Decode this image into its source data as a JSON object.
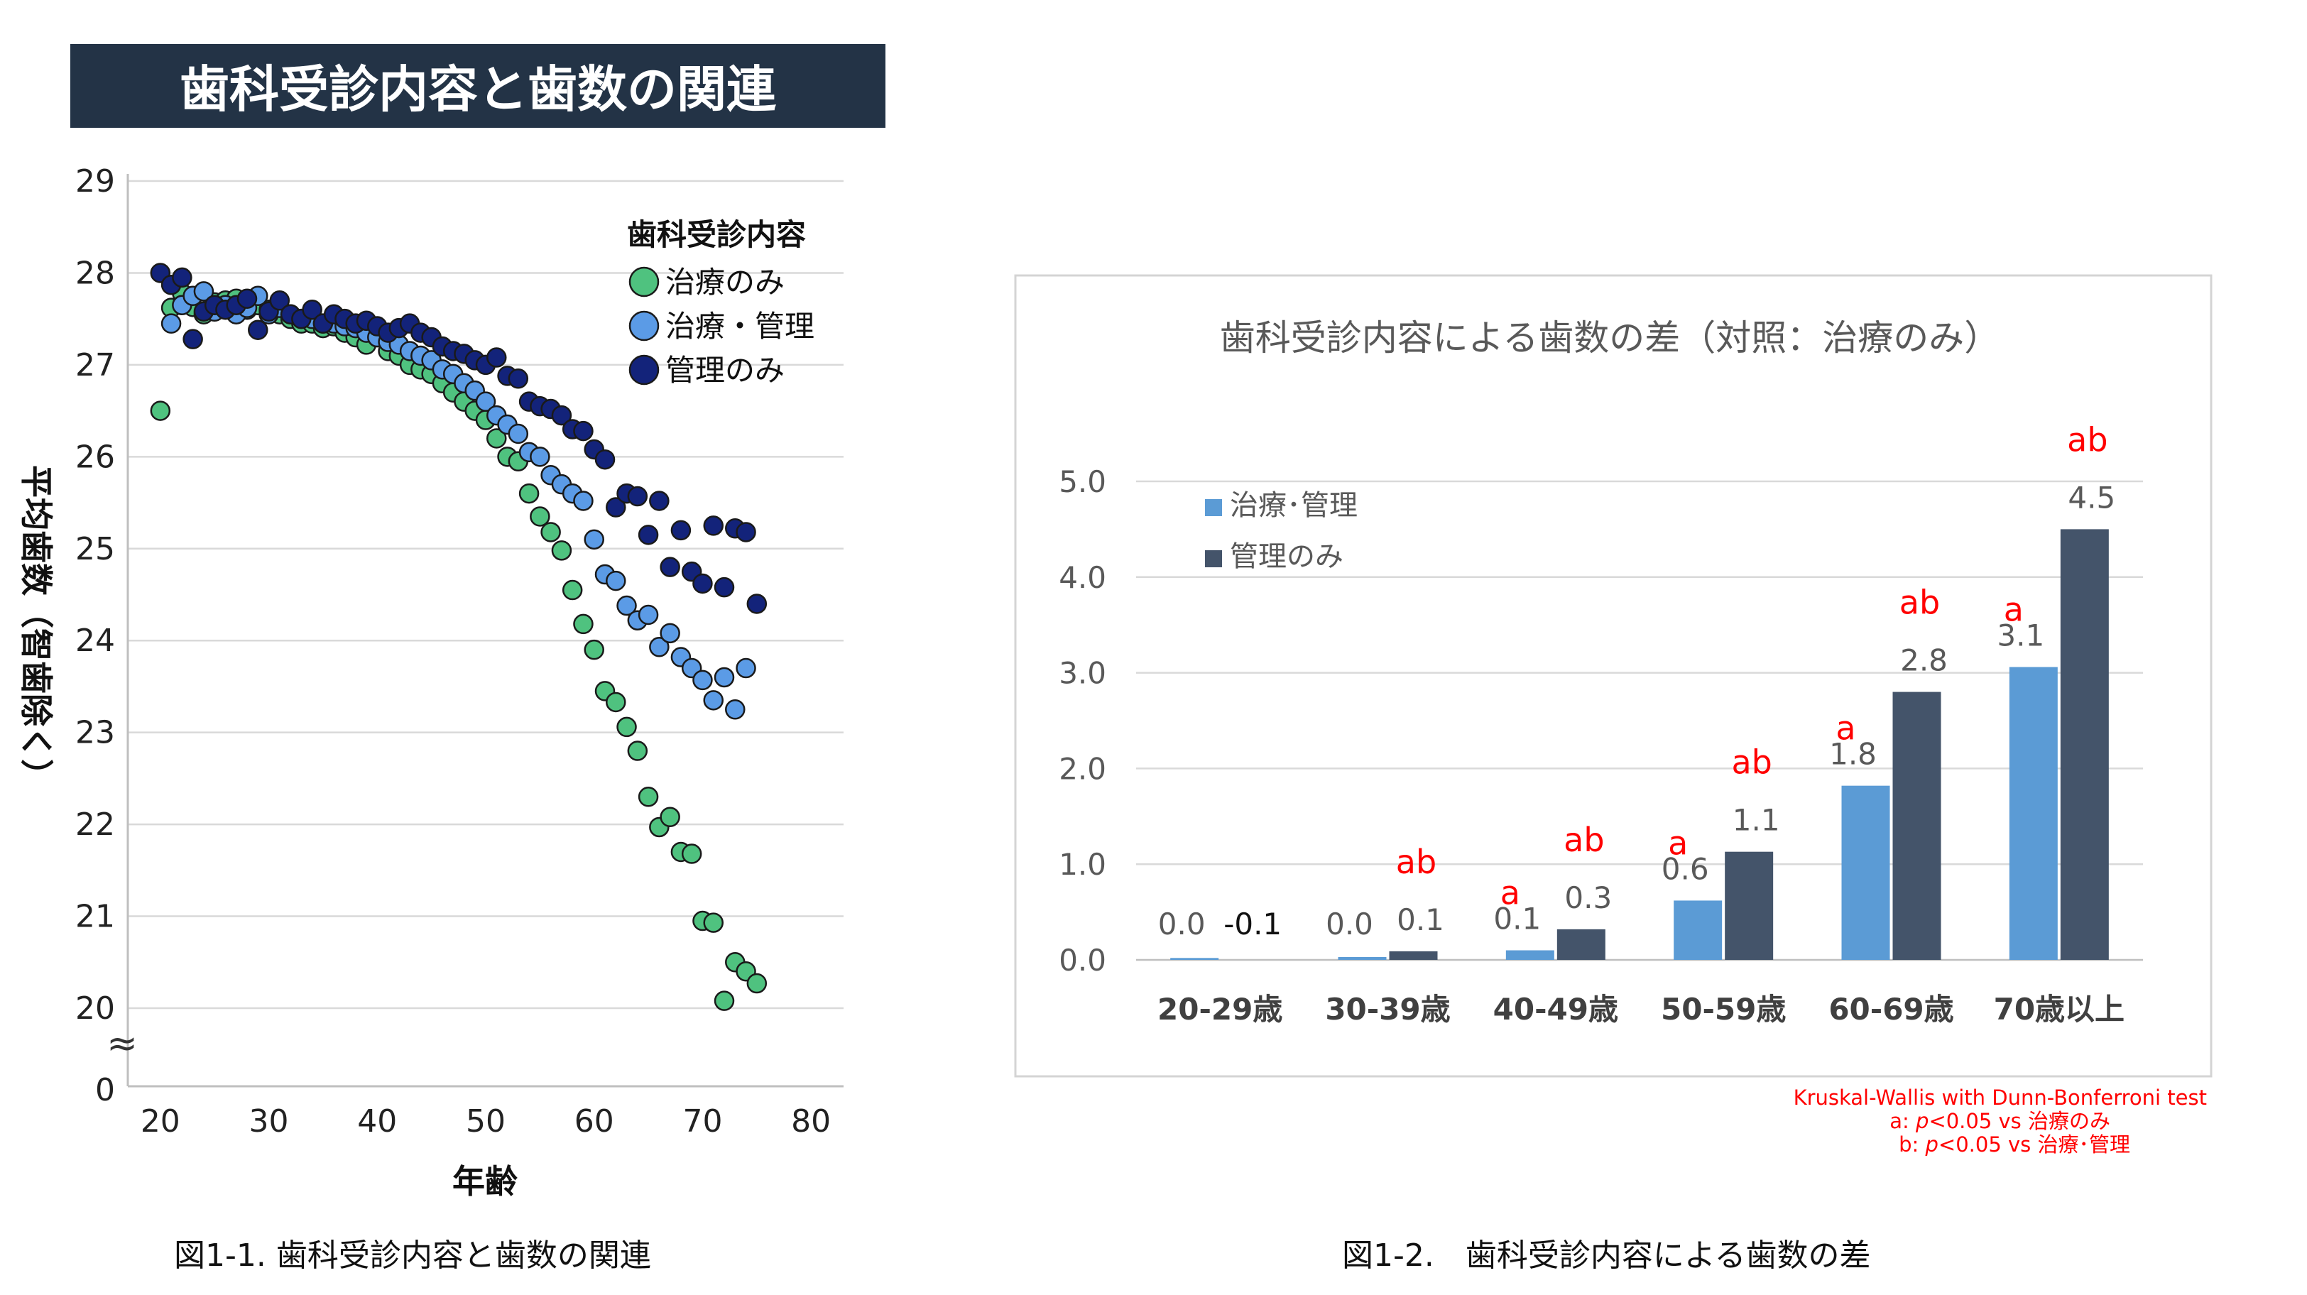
{
  "left": {
    "banner": "歯科受診内容と歯数の関連",
    "caption": "図1-1. 歯科受診内容と歯数の関連",
    "chart_data": {
      "type": "scatter",
      "title": "歯科受診内容と歯数の関連",
      "xlabel": "年齢",
      "ylabel": "平均歯数（智歯除く）",
      "xlim": [
        17,
        83
      ],
      "ylim": [
        20,
        29
      ],
      "x_ticks": [
        "20",
        "30",
        "40",
        "50",
        "60",
        "70",
        "80"
      ],
      "y_ticks": [
        "29",
        "28",
        "27",
        "26",
        "25",
        "24",
        "23",
        "22",
        "21",
        "20"
      ],
      "y_zero_label": "0",
      "axis_break": "≈",
      "grid": true,
      "legend_title": "歯科受診内容",
      "legend_position": "top-right",
      "series": [
        {
          "name": "治療のみ",
          "color": "#4fc27f",
          "points": [
            [
              20,
              26.5
            ],
            [
              21,
              27.62
            ],
            [
              22,
              27.78
            ],
            [
              23,
              27.63
            ],
            [
              24,
              27.55
            ],
            [
              25,
              27.68
            ],
            [
              26,
              27.7
            ],
            [
              27,
              27.72
            ],
            [
              28,
              27.6
            ],
            [
              29,
              27.65
            ],
            [
              30,
              27.6
            ],
            [
              31,
              27.55
            ],
            [
              32,
              27.5
            ],
            [
              33,
              27.45
            ],
            [
              34,
              27.45
            ],
            [
              35,
              27.4
            ],
            [
              36,
              27.42
            ],
            [
              37,
              27.35
            ],
            [
              38,
              27.3
            ],
            [
              39,
              27.22
            ],
            [
              40,
              27.3
            ],
            [
              41,
              27.15
            ],
            [
              42,
              27.1
            ],
            [
              43,
              27.0
            ],
            [
              44,
              26.95
            ],
            [
              45,
              26.9
            ],
            [
              46,
              26.8
            ],
            [
              47,
              26.7
            ],
            [
              48,
              26.6
            ],
            [
              49,
              26.5
            ],
            [
              50,
              26.4
            ],
            [
              51,
              26.2
            ],
            [
              52,
              26.0
            ],
            [
              53,
              25.95
            ],
            [
              54,
              25.6
            ],
            [
              55,
              25.35
            ],
            [
              56,
              25.18
            ],
            [
              57,
              24.98
            ],
            [
              58,
              24.55
            ],
            [
              59,
              24.18
            ],
            [
              60,
              23.9
            ],
            [
              61,
              23.45
            ],
            [
              62,
              23.33
            ],
            [
              63,
              23.06
            ],
            [
              64,
              22.8
            ],
            [
              65,
              22.3
            ],
            [
              66,
              21.97
            ],
            [
              67,
              22.08
            ],
            [
              68,
              21.7
            ],
            [
              69,
              21.68
            ],
            [
              70,
              20.95
            ],
            [
              71,
              20.93
            ],
            [
              72,
              20.08
            ],
            [
              73,
              20.5
            ],
            [
              74,
              20.4
            ],
            [
              75,
              20.27
            ]
          ]
        },
        {
          "name": "治療・管理",
          "color": "#5b9be6",
          "points": [
            [
              21,
              27.45
            ],
            [
              22,
              27.65
            ],
            [
              23,
              27.75
            ],
            [
              24,
              27.8
            ],
            [
              25,
              27.58
            ],
            [
              26,
              27.65
            ],
            [
              27,
              27.55
            ],
            [
              28,
              27.62
            ],
            [
              29,
              27.75
            ],
            [
              30,
              27.55
            ],
            [
              31,
              27.62
            ],
            [
              32,
              27.55
            ],
            [
              33,
              27.5
            ],
            [
              34,
              27.5
            ],
            [
              35,
              27.45
            ],
            [
              36,
              27.45
            ],
            [
              37,
              27.42
            ],
            [
              38,
              27.4
            ],
            [
              39,
              27.35
            ],
            [
              40,
              27.3
            ],
            [
              41,
              27.25
            ],
            [
              42,
              27.22
            ],
            [
              43,
              27.15
            ],
            [
              44,
              27.1
            ],
            [
              45,
              27.05
            ],
            [
              46,
              26.95
            ],
            [
              47,
              26.9
            ],
            [
              48,
              26.8
            ],
            [
              49,
              26.72
            ],
            [
              50,
              26.6
            ],
            [
              51,
              26.45
            ],
            [
              52,
              26.35
            ],
            [
              53,
              26.25
            ],
            [
              54,
              26.05
            ],
            [
              55,
              26.0
            ],
            [
              56,
              25.8
            ],
            [
              57,
              25.7
            ],
            [
              58,
              25.6
            ],
            [
              59,
              25.52
            ],
            [
              60,
              25.1
            ],
            [
              61,
              24.72
            ],
            [
              62,
              24.65
            ],
            [
              63,
              24.38
            ],
            [
              64,
              24.22
            ],
            [
              65,
              24.28
            ],
            [
              66,
              23.93
            ],
            [
              67,
              24.08
            ],
            [
              68,
              23.82
            ],
            [
              69,
              23.7
            ],
            [
              70,
              23.57
            ],
            [
              71,
              23.35
            ],
            [
              72,
              23.6
            ],
            [
              73,
              23.25
            ],
            [
              74,
              23.7
            ]
          ]
        },
        {
          "name": "管理のみ",
          "color": "#13237a",
          "points": [
            [
              20,
              28.0
            ],
            [
              21,
              27.87
            ],
            [
              22,
              27.95
            ],
            [
              23,
              27.28
            ],
            [
              24,
              27.58
            ],
            [
              25,
              27.65
            ],
            [
              26,
              27.6
            ],
            [
              27,
              27.65
            ],
            [
              28,
              27.72
            ],
            [
              29,
              27.38
            ],
            [
              30,
              27.58
            ],
            [
              31,
              27.7
            ],
            [
              32,
              27.55
            ],
            [
              33,
              27.5
            ],
            [
              34,
              27.6
            ],
            [
              35,
              27.45
            ],
            [
              36,
              27.55
            ],
            [
              37,
              27.5
            ],
            [
              38,
              27.45
            ],
            [
              39,
              27.48
            ],
            [
              40,
              27.42
            ],
            [
              41,
              27.35
            ],
            [
              42,
              27.4
            ],
            [
              43,
              27.45
            ],
            [
              44,
              27.35
            ],
            [
              45,
              27.3
            ],
            [
              46,
              27.2
            ],
            [
              47,
              27.15
            ],
            [
              48,
              27.12
            ],
            [
              49,
              27.05
            ],
            [
              50,
              27.0
            ],
            [
              51,
              27.08
            ],
            [
              52,
              26.88
            ],
            [
              53,
              26.85
            ],
            [
              54,
              26.6
            ],
            [
              55,
              26.55
            ],
            [
              56,
              26.52
            ],
            [
              57,
              26.45
            ],
            [
              58,
              26.3
            ],
            [
              59,
              26.28
            ],
            [
              60,
              26.08
            ],
            [
              61,
              25.97
            ],
            [
              62,
              25.45
            ],
            [
              63,
              25.6
            ],
            [
              64,
              25.57
            ],
            [
              65,
              25.15
            ],
            [
              66,
              25.52
            ],
            [
              67,
              24.8
            ],
            [
              68,
              25.2
            ],
            [
              69,
              24.75
            ],
            [
              70,
              24.62
            ],
            [
              71,
              25.25
            ],
            [
              72,
              24.58
            ],
            [
              73,
              25.22
            ],
            [
              74,
              25.18
            ],
            [
              75,
              24.4
            ]
          ]
        }
      ]
    }
  },
  "right": {
    "caption": "図1-2.　歯科受診内容による歯数の差",
    "chart_data": {
      "type": "bar",
      "title": "歯科受診内容による歯数の差（対照：治療のみ）",
      "categories": [
        "20-29歳",
        "30-39歳",
        "40-49歳",
        "50-59歳",
        "60-69歳",
        "70歳以上"
      ],
      "ylim": [
        0,
        5
      ],
      "y_ticks": [
        "0.0",
        "1.0",
        "2.0",
        "3.0",
        "4.0",
        "5.0"
      ],
      "grid": true,
      "legend_position": "top-left",
      "series": [
        {
          "name": "治療･管理",
          "color": "#5b9bd5",
          "values": [
            0.0,
            0.0,
            0.1,
            0.6,
            1.8,
            3.1
          ],
          "labels": [
            "0.0",
            "0.0",
            "0.1",
            "0.6",
            "1.8",
            "3.1"
          ],
          "bar_heights": [
            0.02,
            0.03,
            0.1,
            0.62,
            1.82,
            3.06
          ]
        },
        {
          "name": "管理のみ",
          "color": "#44546a",
          "values": [
            -0.1,
            0.1,
            0.3,
            1.1,
            2.8,
            4.5
          ],
          "labels": [
            "-0.1",
            "0.1",
            "0.3",
            "1.1",
            "2.8",
            "4.5"
          ],
          "bar_heights": [
            0.0,
            0.09,
            0.32,
            1.13,
            2.8,
            4.5
          ]
        }
      ],
      "annotations": [
        [
          "",
          ""
        ],
        [
          "",
          "ab"
        ],
        [
          "a",
          "ab"
        ],
        [
          "a",
          "ab"
        ],
        [
          "a",
          "ab"
        ],
        [
          "a",
          "ab"
        ]
      ],
      "annotation_color": "#ff0000"
    },
    "note": {
      "line1": "Kruskal-Wallis with Dunn-Bonferroni test",
      "line2_prefix": "a: ",
      "line2_p": "p",
      "line2_rest": "<0.05 vs 治療のみ",
      "line3_prefix": "b: ",
      "line3_p": "p",
      "line3_rest": "<0.05 vs 治療･管理"
    }
  }
}
